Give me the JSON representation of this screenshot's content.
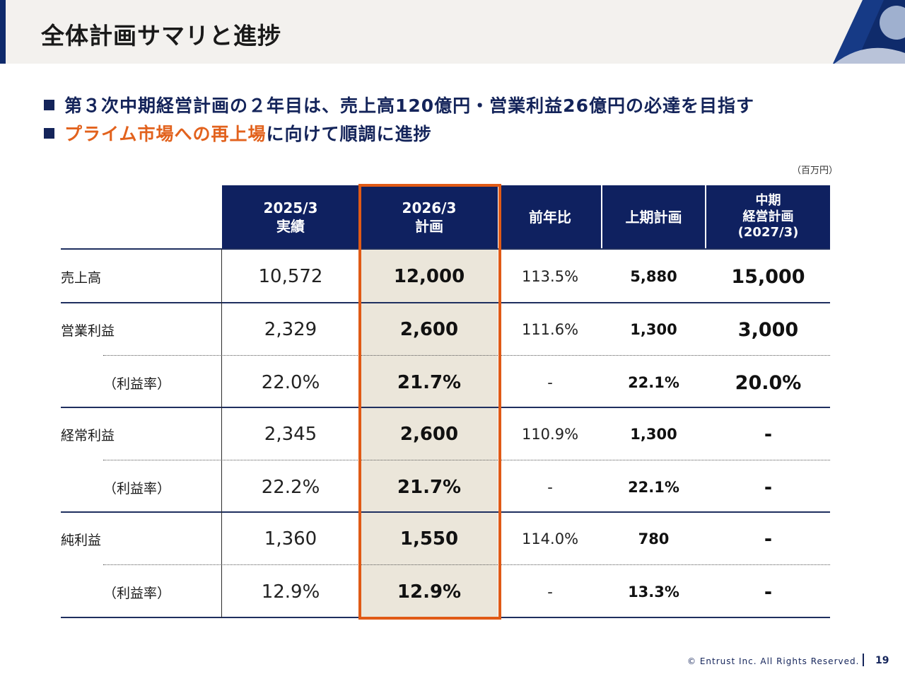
{
  "header": {
    "title": "全体計画サマリと進捗"
  },
  "bullets": [
    {
      "text": "第３次中期経営計画の２年目は、売上高120億円・営業利益26億円の必達を目指す"
    },
    {
      "highlight": "プライム市場への再上場",
      "rest": "に向けて順調に進捗"
    }
  ],
  "unit": "（百万円）",
  "table": {
    "headers": {
      "actual": [
        "2025/3",
        "実績"
      ],
      "plan": [
        "2026/3",
        "計画"
      ],
      "yoy": "前年比",
      "h1": "上期計画",
      "mid": [
        "中期",
        "経営計画",
        "(2027/3)"
      ]
    },
    "rows": [
      {
        "label": "売上高",
        "actual": "10,572",
        "plan": "12,000",
        "yoy": "113.5%",
        "h1": "5,880",
        "mid": "15,000"
      },
      {
        "label": "営業利益",
        "actual": "2,329",
        "plan": "2,600",
        "yoy": "111.6%",
        "h1": "1,300",
        "mid": "3,000"
      },
      {
        "label": "（利益率）",
        "actual": "22.0%",
        "plan": "21.7%",
        "yoy": "-",
        "h1": "22.1%",
        "mid": "20.0%"
      },
      {
        "label": "経常利益",
        "actual": "2,345",
        "plan": "2,600",
        "yoy": "110.9%",
        "h1": "1,300",
        "mid": "-"
      },
      {
        "label": "（利益率）",
        "actual": "22.2%",
        "plan": "21.7%",
        "yoy": "-",
        "h1": "22.1%",
        "mid": "-"
      },
      {
        "label": "純利益",
        "actual": "1,360",
        "plan": "1,550",
        "yoy": "114.0%",
        "h1": "780",
        "mid": "-"
      },
      {
        "label": "（利益率）",
        "actual": "12.9%",
        "plan": "12.9%",
        "yoy": "-",
        "h1": "13.3%",
        "mid": "-"
      }
    ]
  },
  "footer": {
    "copyright": "© Entrust Inc. All Rights Reserved.",
    "page": "19"
  },
  "colors": {
    "navy": "#0f2160",
    "accent_orange": "#e05a16",
    "highlight_bg": "#ebe6da"
  }
}
